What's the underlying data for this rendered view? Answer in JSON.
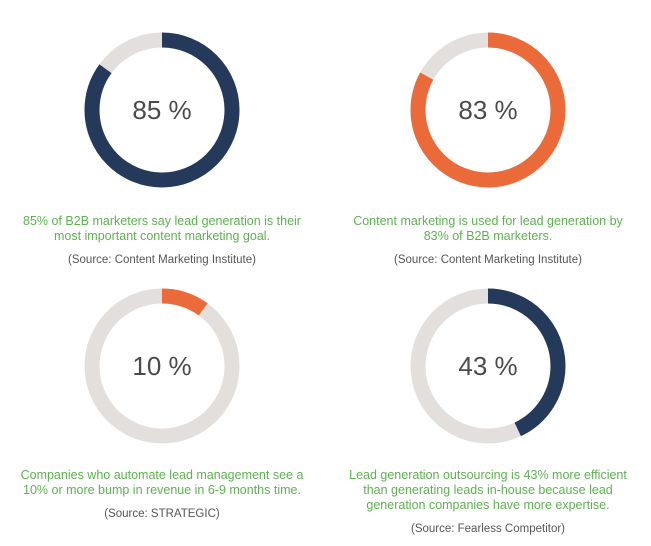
{
  "colors": {
    "track": "#e2dfdc",
    "navy": "#253a5a",
    "orange": "#ea6a39",
    "caption": "#5cb24f",
    "source": "#555555"
  },
  "chart_data": [
    {
      "type": "pie",
      "value": 85,
      "label": "85 %",
      "color": "navy",
      "caption": "85% of B2B marketers say lead generation is their most important content marketing goal.",
      "source": "(Source: Content Marketing Institute)"
    },
    {
      "type": "pie",
      "value": 83,
      "label": "83 %",
      "color": "orange",
      "caption": "Content marketing is used for lead generation by 83% of B2B marketers.",
      "source": "(Source: Content Marketing Institute)"
    },
    {
      "type": "pie",
      "value": 10,
      "label": "10 %",
      "color": "orange",
      "caption": "Companies who automate lead management see a 10% or more bump in revenue in 6-9 months time.",
      "source": "(Source: STRATEGIC)"
    },
    {
      "type": "pie",
      "value": 43,
      "label": "43 %",
      "color": "navy",
      "caption": "Lead generation outsourcing is 43% more efficient than generating leads in-house because lead generation companies have more expertise.",
      "source": "(Source: Fearless Competitor)"
    }
  ]
}
